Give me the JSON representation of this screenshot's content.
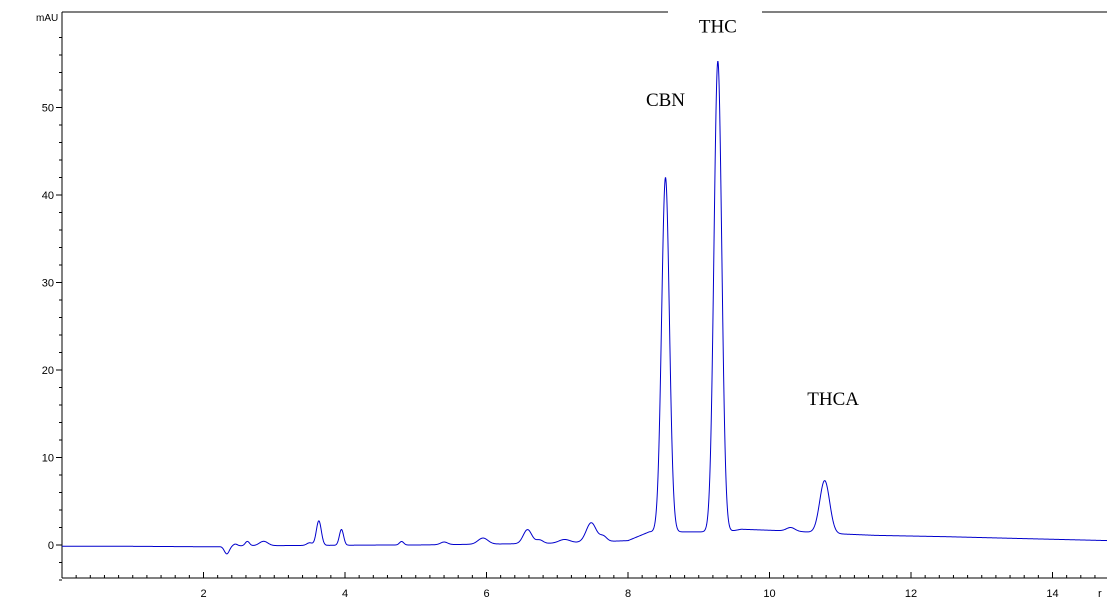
{
  "chart_data": {
    "type": "line",
    "title": "",
    "xlabel": "",
    "ylabel": "mAU",
    "x_axis_unit_fragment": "r",
    "xlim": [
      0,
      14.8
    ],
    "ylim": [
      -4,
      60
    ],
    "grid": false,
    "x_ticks": [
      2,
      4,
      6,
      8,
      10,
      12,
      14
    ],
    "y_ticks": [
      0,
      10,
      20,
      30,
      40,
      50
    ],
    "x_tick_labels": [
      "2",
      "4",
      "6",
      "8",
      "10",
      "12",
      "14"
    ],
    "y_tick_labels": [
      "0",
      "10",
      "20",
      "30",
      "40",
      "50"
    ],
    "line_color": "#0000cc",
    "baseline": [
      [
        0,
        -0.15
      ],
      [
        1,
        -0.15
      ],
      [
        2,
        -0.2
      ],
      [
        2.2,
        -0.2
      ],
      [
        2.35,
        -0.1
      ],
      [
        4.6,
        0.0
      ],
      [
        5.0,
        0.0
      ],
      [
        6.0,
        0.1
      ],
      [
        7.0,
        0.2
      ],
      [
        8.0,
        0.5
      ],
      [
        8.3,
        1.5
      ],
      [
        9.4,
        1.5
      ],
      [
        9.6,
        1.8
      ],
      [
        10.3,
        1.6
      ],
      [
        10.9,
        1.3
      ],
      [
        11.5,
        1.1
      ],
      [
        12.5,
        0.95
      ],
      [
        13.5,
        0.75
      ],
      [
        14.8,
        0.5
      ]
    ],
    "peaks": [
      {
        "x": 2.33,
        "h": -0.9,
        "w": 0.035
      },
      {
        "x": 2.45,
        "h": 0.2,
        "w": 0.03
      },
      {
        "x": 2.62,
        "h": 0.5,
        "w": 0.03
      },
      {
        "x": 2.85,
        "h": 0.5,
        "w": 0.06
      },
      {
        "x": 3.5,
        "h": 0.3,
        "w": 0.04
      },
      {
        "x": 3.63,
        "h": 2.8,
        "w": 0.035
      },
      {
        "x": 3.95,
        "h": 1.8,
        "w": 0.03
      },
      {
        "x": 4.8,
        "h": 0.4,
        "w": 0.03
      },
      {
        "x": 5.4,
        "h": 0.3,
        "w": 0.05
      },
      {
        "x": 5.95,
        "h": 0.7,
        "w": 0.07
      },
      {
        "x": 6.58,
        "h": 1.6,
        "w": 0.06
      },
      {
        "x": 6.75,
        "h": 0.4,
        "w": 0.05
      },
      {
        "x": 7.1,
        "h": 0.4,
        "w": 0.08
      },
      {
        "x": 7.48,
        "h": 2.2,
        "w": 0.07
      },
      {
        "x": 7.65,
        "h": 0.6,
        "w": 0.05
      },
      {
        "x": 8.53,
        "h": 40.5,
        "w": 0.055
      },
      {
        "x": 9.27,
        "h": 53.8,
        "w": 0.055
      },
      {
        "x": 10.3,
        "h": 0.4,
        "w": 0.06
      },
      {
        "x": 10.78,
        "h": 6.0,
        "w": 0.07
      }
    ],
    "annotations": [
      {
        "text": "CBN",
        "x": 8.53,
        "y": 50.2
      },
      {
        "text": "THC",
        "x": 9.27,
        "y": 58.6
      },
      {
        "text": "THCA",
        "x": 10.9,
        "y": 16.0
      }
    ]
  }
}
